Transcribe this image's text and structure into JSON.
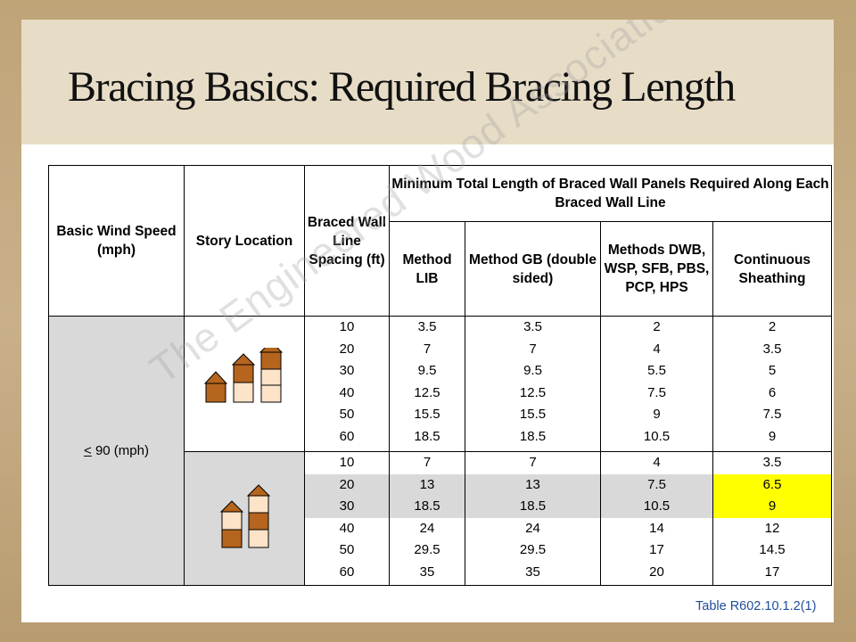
{
  "title": "Bracing Basics: Required Bracing Length",
  "table": {
    "headers": {
      "wind_speed": "Basic Wind Speed (mph)",
      "story": "Story Location",
      "spacing": "Braced Wall Line Spacing (ft)",
      "group": "Minimum Total Length of Braced Wall Panels Required Along Each Braced Wall Line",
      "method_lib": "Method LIB",
      "method_gb": "Method GB (double sided)",
      "methods_other": "Methods DWB, WSP, SFB, PBS, PCP, HPS",
      "continuous": "Continuous Sheathing"
    },
    "wind_speed": {
      "symbol": "<",
      "value": "90 (mph)"
    },
    "groups": [
      {
        "story_icon": "one-two-three-story-house-icon",
        "rows": [
          {
            "spacing": "10",
            "lib": "3.5",
            "gb": "3.5",
            "other": "2",
            "cont": "2"
          },
          {
            "spacing": "20",
            "lib": "7",
            "gb": "7",
            "other": "4",
            "cont": "3.5"
          },
          {
            "spacing": "30",
            "lib": "9.5",
            "gb": "9.5",
            "other": "5.5",
            "cont": "5"
          },
          {
            "spacing": "40",
            "lib": "12.5",
            "gb": "12.5",
            "other": "7.5",
            "cont": "6"
          },
          {
            "spacing": "50",
            "lib": "15.5",
            "gb": "15.5",
            "other": "9",
            "cont": "7.5"
          },
          {
            "spacing": "60",
            "lib": "18.5",
            "gb": "18.5",
            "other": "10.5",
            "cont": "9"
          }
        ]
      },
      {
        "story_icon": "two-three-story-house-icon",
        "rows": [
          {
            "spacing": "10",
            "lib": "7",
            "gb": "7",
            "other": "4",
            "cont": "3.5"
          },
          {
            "spacing": "20",
            "lib": "13",
            "gb": "13",
            "other": "7.5",
            "cont": "6.5"
          },
          {
            "spacing": "30",
            "lib": "18.5",
            "gb": "18.5",
            "other": "10.5",
            "cont": "9"
          },
          {
            "spacing": "40",
            "lib": "24",
            "gb": "24",
            "other": "14",
            "cont": "12"
          },
          {
            "spacing": "50",
            "lib": "29.5",
            "gb": "29.5",
            "other": "17",
            "cont": "14.5"
          },
          {
            "spacing": "60",
            "lib": "35",
            "gb": "35",
            "other": "20",
            "cont": "17"
          }
        ]
      }
    ]
  },
  "caption": "Table R602.10.1.2(1)",
  "watermark": "The Engineered Wood Association",
  "colors": {
    "frame": "#c4ab7e",
    "title_band": "#e7ddc7",
    "grey_cell": "#d9d9d9",
    "highlight": "#ffff00",
    "house_brown": "#b5651d",
    "house_light": "#fde3c8",
    "caption": "#1f4e9c"
  }
}
